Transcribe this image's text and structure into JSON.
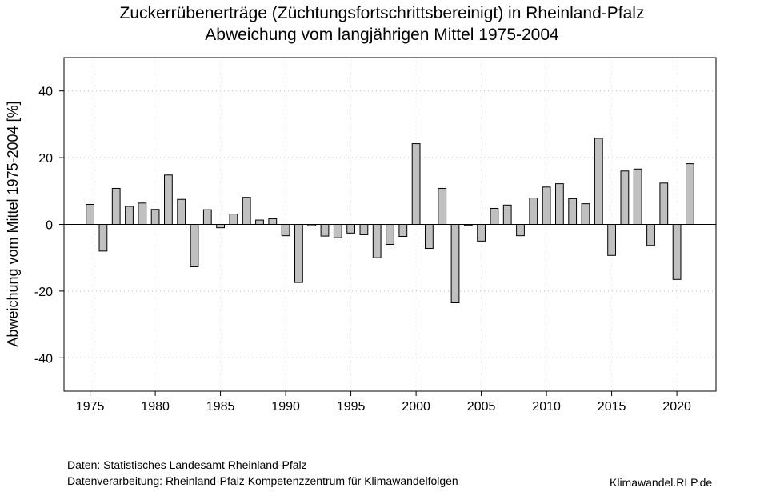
{
  "title": {
    "line1": "Zuckerrübenerträge (Züchtungsfortschrittsbereinigt) in Rheinland-Pfalz",
    "line2": "Abweichung vom langjährigen Mittel 1975-2004"
  },
  "footer": {
    "source": "Daten: Statistisches Landesamt Rheinland-Pfalz",
    "processing": "Datenverarbeitung: Rheinland-Pfalz Kompetenzzentrum für Klimawandelfolgen",
    "brand": "Klimawandel.RLP.de"
  },
  "chart_data": {
    "type": "bar",
    "title": "Zuckerrübenerträge (Züchtungsfortschrittsbereinigt) in Rheinland-Pfalz – Abweichung vom langjährigen Mittel 1975-2004",
    "xlabel": "",
    "ylabel": "Abweichung vom Mittel 1975-2004 [%]",
    "ylim": [
      -50,
      50
    ],
    "xlim": [
      1973,
      2023
    ],
    "xticks": [
      1975,
      1980,
      1985,
      1990,
      1995,
      2000,
      2005,
      2010,
      2015,
      2020
    ],
    "yticks": [
      -40,
      -20,
      0,
      20,
      40
    ],
    "grid": true,
    "bar_color": "#c0c0c0",
    "categories": [
      1975,
      1976,
      1977,
      1978,
      1979,
      1980,
      1981,
      1982,
      1983,
      1984,
      1985,
      1986,
      1987,
      1988,
      1989,
      1990,
      1991,
      1992,
      1993,
      1994,
      1995,
      1996,
      1997,
      1998,
      1999,
      2000,
      2001,
      2002,
      2003,
      2004,
      2005,
      2006,
      2007,
      2008,
      2009,
      2010,
      2011,
      2012,
      2013,
      2014,
      2015,
      2016,
      2017,
      2018,
      2019,
      2020,
      2021
    ],
    "values": [
      6.0,
      -8.0,
      10.8,
      5.4,
      6.4,
      4.5,
      14.8,
      7.5,
      -12.7,
      4.4,
      -1.0,
      3.1,
      8.1,
      1.3,
      1.7,
      -3.4,
      -17.4,
      -0.4,
      -3.5,
      -4.0,
      -2.6,
      -3.1,
      -10.0,
      -6.0,
      -3.6,
      24.2,
      -7.2,
      10.8,
      -23.5,
      -0.3,
      -5.0,
      4.8,
      5.8,
      -3.4,
      7.9,
      11.2,
      12.2,
      7.7,
      6.2,
      25.8,
      -9.3,
      16.0,
      16.6,
      -6.3,
      12.4,
      -16.5,
      18.2
    ]
  }
}
